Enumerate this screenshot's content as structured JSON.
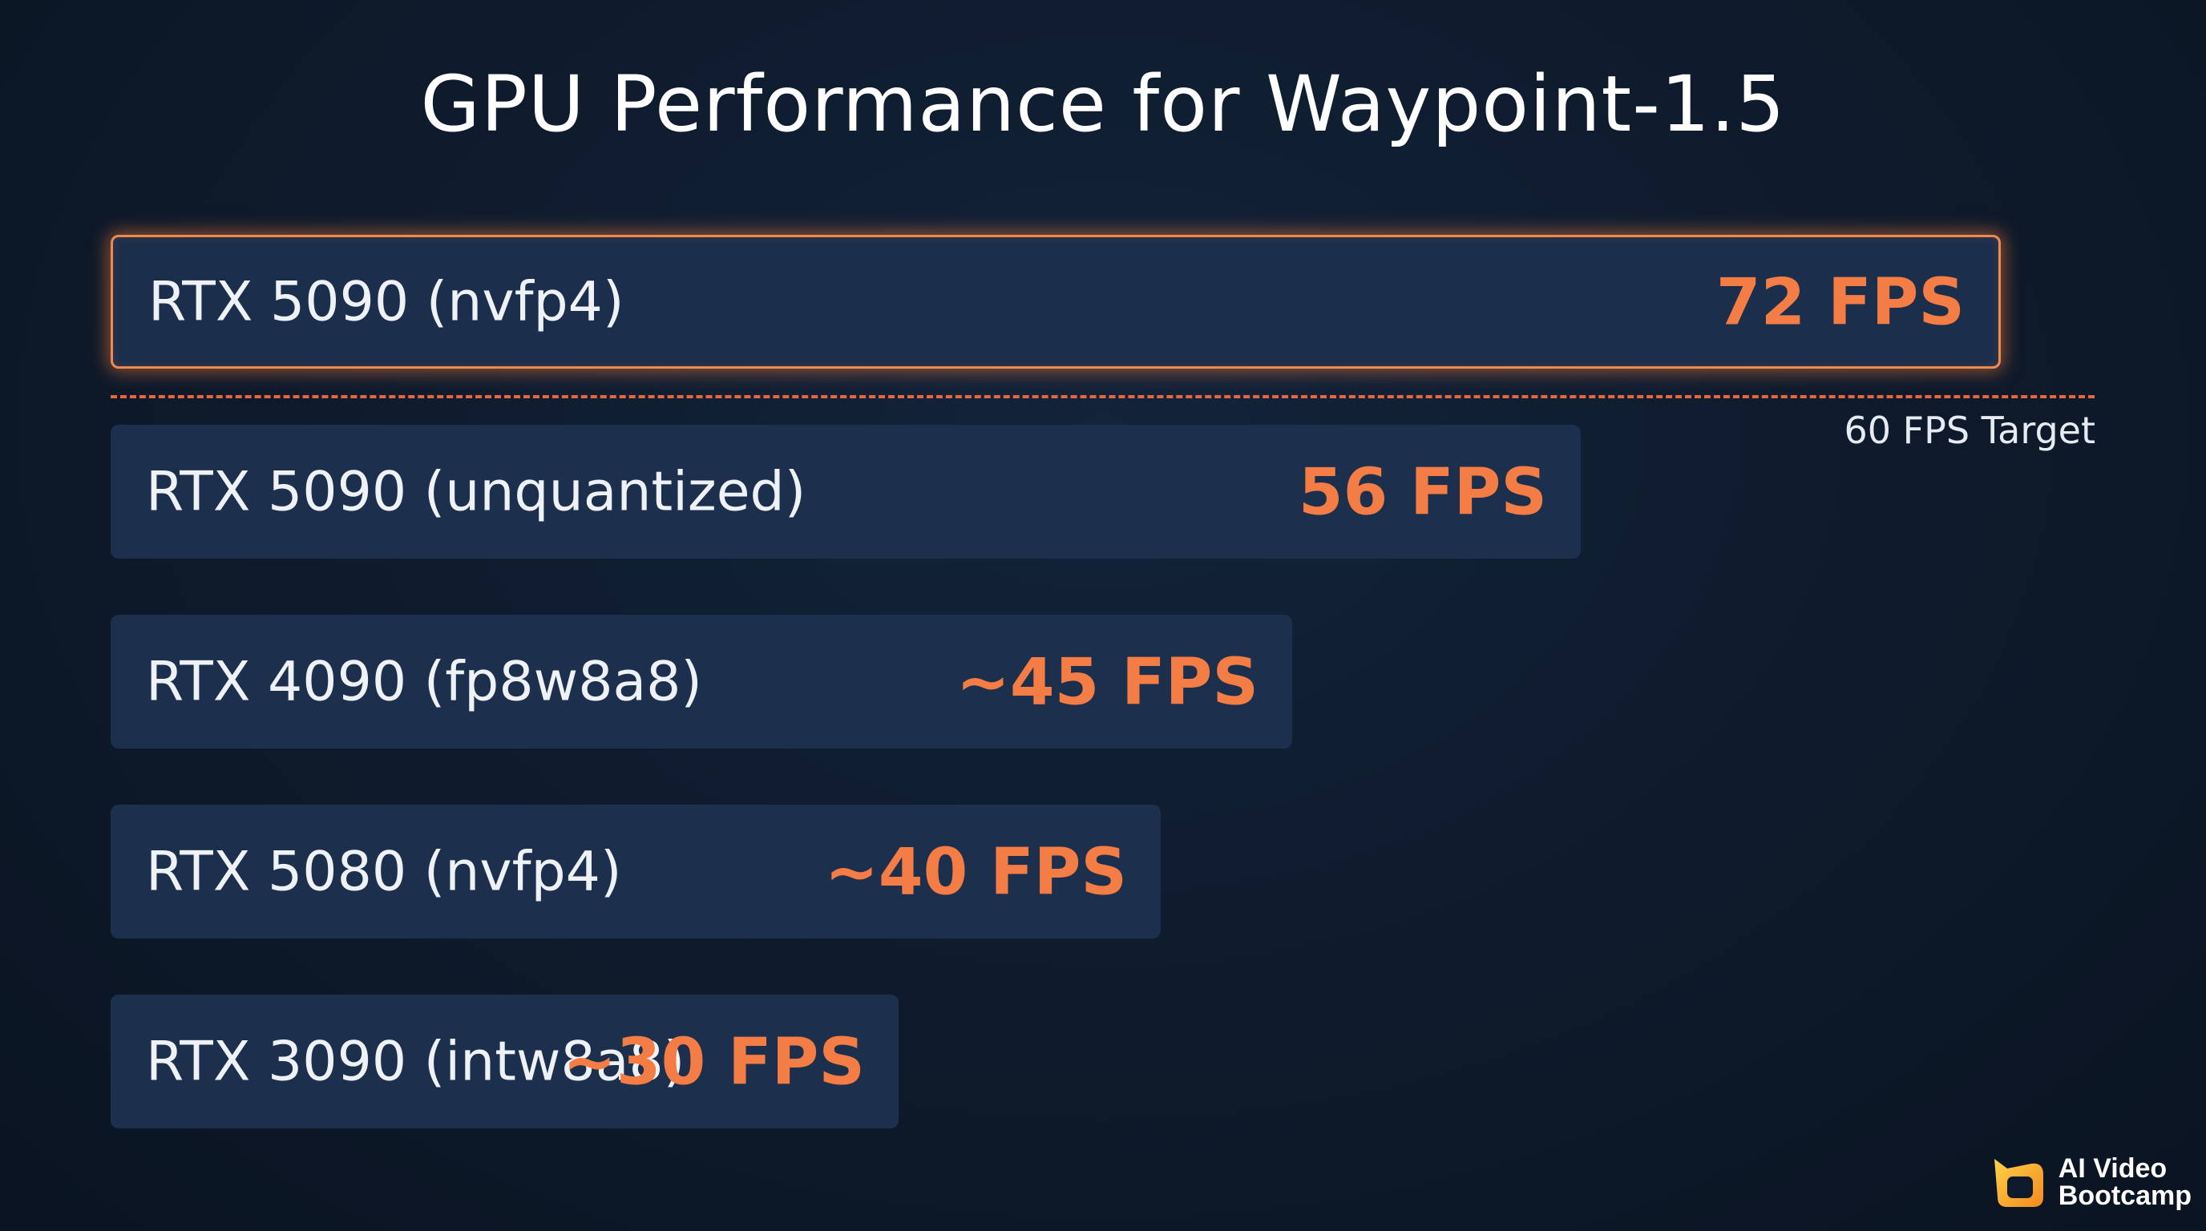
{
  "chart_data": {
    "type": "bar",
    "orientation": "horizontal",
    "title": "GPU Performance for Waypoint-1.5",
    "categories": [
      "RTX 5090 (nvfp4)",
      "RTX 5090 (unquantized)",
      "RTX 4090 (fp8w8a8)",
      "RTX 5080 (nvfp4)",
      "RTX 3090 (intw8a8)"
    ],
    "values": [
      72,
      56,
      45,
      40,
      30
    ],
    "value_labels": [
      "72 FPS",
      "56 FPS",
      "~45 FPS",
      "~40 FPS",
      "~30 FPS"
    ],
    "highlighted_index": 0,
    "reference_line": {
      "value": 60,
      "label": "60 FPS Target",
      "color": "#e8663c",
      "style": "dashed"
    },
    "grid": false,
    "legend": "none",
    "colors": {
      "background": "#0e1a2b",
      "bar": "#1c2f4c",
      "value_text": "#f47c45",
      "highlight_border": "#f08a4c"
    }
  },
  "branding": {
    "logo_line1": "AI Video",
    "logo_line2": "Bootcamp",
    "icon": "play-frame-icon"
  }
}
